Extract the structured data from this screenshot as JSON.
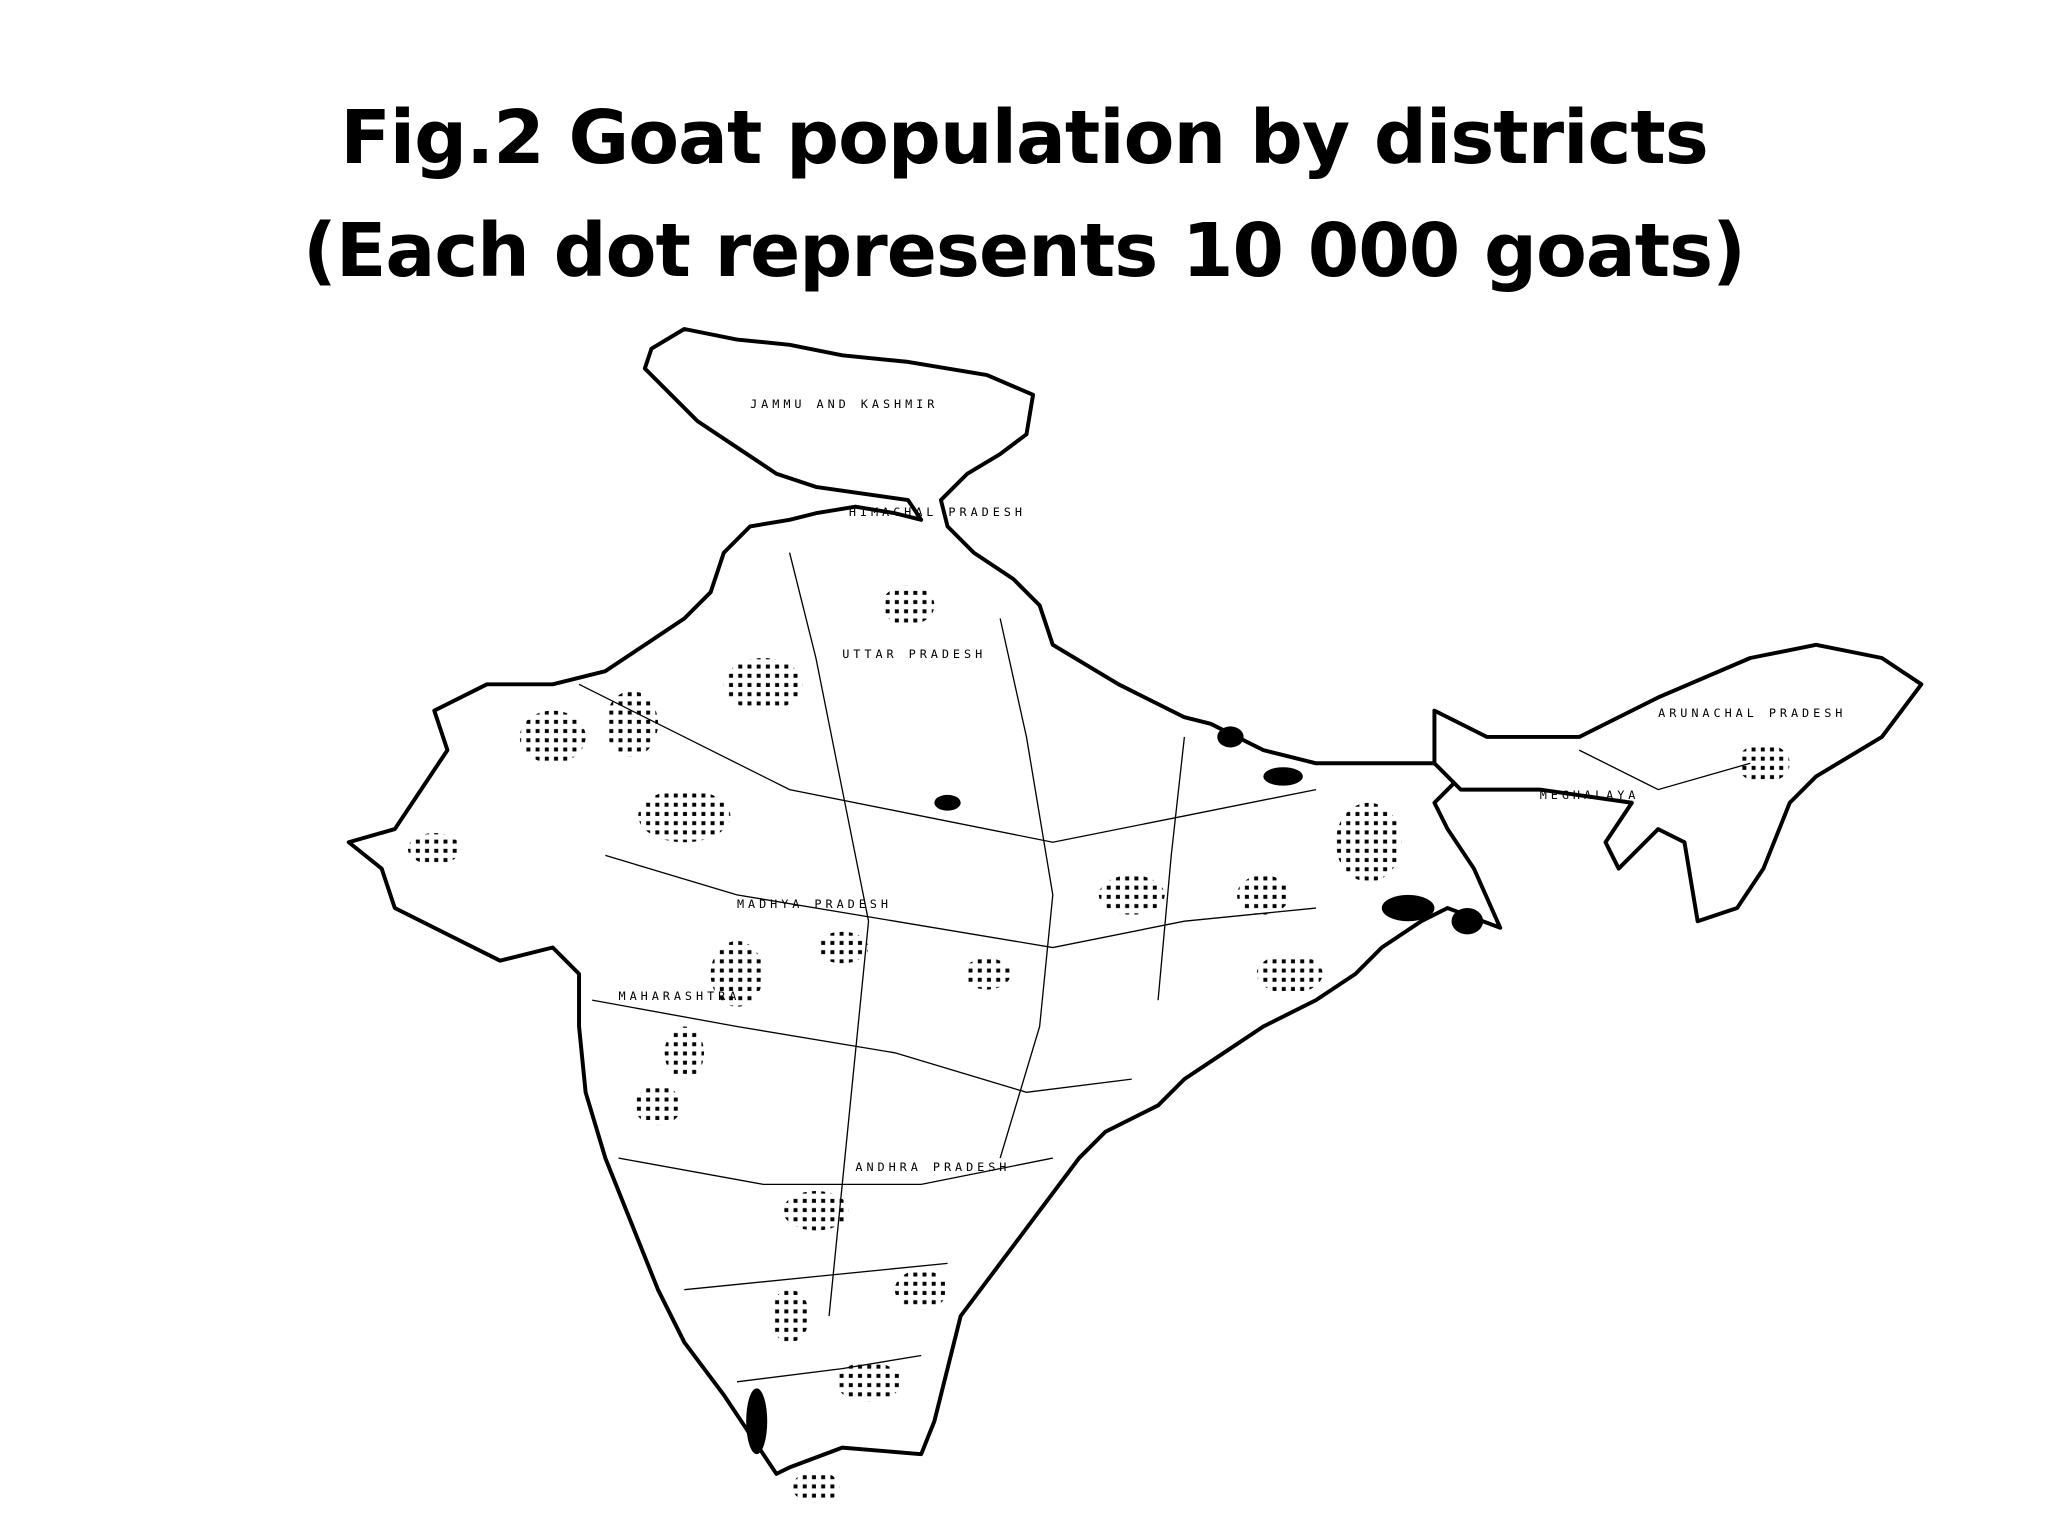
{
  "header": {
    "title": "Fig.2 Goat population by districts",
    "subtitle": "(Each dot represents 10 000 goats)"
  },
  "map": {
    "labels": [
      "JAMMU AND KASHMIR",
      "HIMACHAL PRADESH",
      "UTTAR PRADESH",
      "MADHYA PRADESH",
      "MAHARASHTRA",
      "ANDHRA PRADESH",
      "ARUNACHAL PRADESH",
      "MEGHALAYA"
    ]
  }
}
